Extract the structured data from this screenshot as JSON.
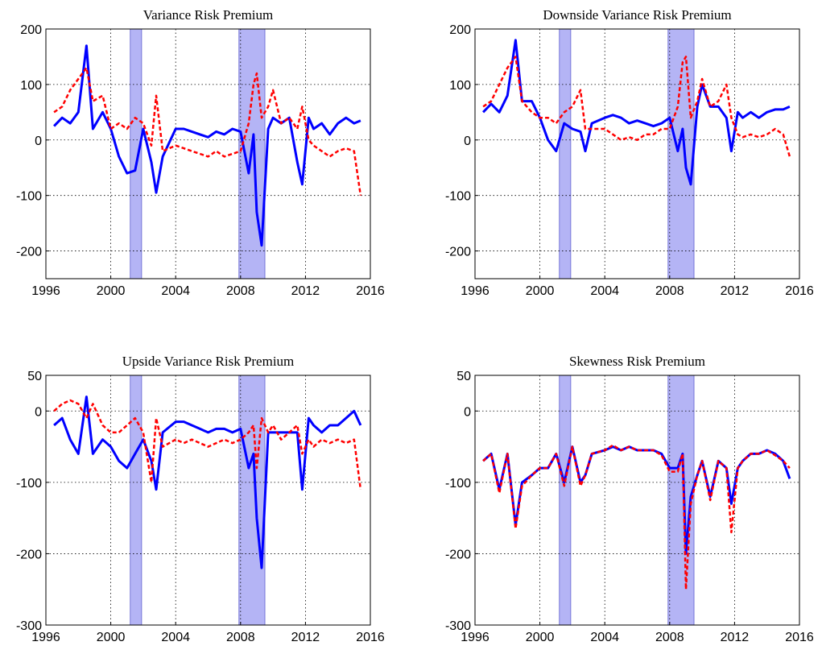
{
  "chart_data": [
    {
      "type": "line",
      "title": "Variance Risk Premium",
      "x": [
        1996.5,
        1997,
        1997.5,
        1998,
        1998.5,
        1998.9,
        1999.5,
        2000,
        2000.5,
        2001,
        2001.5,
        2002,
        2002.5,
        2002.8,
        2003.2,
        2004,
        2004.5,
        2005,
        2005.5,
        2006,
        2006.5,
        2007,
        2007.5,
        2008,
        2008.5,
        2008.8,
        2009,
        2009.3,
        2009.7,
        2010,
        2010.5,
        2011,
        2011.5,
        2011.8,
        2012.2,
        2012.5,
        2013,
        2013.5,
        2014,
        2014.5,
        2015,
        2015.4
      ],
      "series": [
        {
          "color": "#0000ff",
          "dashed": false,
          "values": [
            25,
            40,
            30,
            50,
            170,
            20,
            50,
            20,
            -30,
            -60,
            -55,
            20,
            -40,
            -95,
            -30,
            20,
            20,
            15,
            10,
            5,
            15,
            10,
            20,
            15,
            -60,
            10,
            -130,
            -190,
            20,
            40,
            30,
            40,
            -40,
            -80,
            40,
            20,
            30,
            10,
            30,
            40,
            30,
            35
          ]
        },
        {
          "color": "#ff0000",
          "dashed": true,
          "values": [
            50,
            60,
            90,
            110,
            130,
            70,
            80,
            20,
            30,
            20,
            40,
            30,
            -10,
            80,
            -20,
            -10,
            -15,
            -20,
            -25,
            -30,
            -20,
            -30,
            -25,
            -20,
            30,
            100,
            120,
            40,
            60,
            90,
            30,
            40,
            20,
            60,
            0,
            -10,
            -20,
            -30,
            -20,
            -15,
            -20,
            -100
          ]
        }
      ],
      "xlim": [
        1996,
        2016
      ],
      "xticks": [
        1996,
        2000,
        2004,
        2008,
        2012,
        2016
      ],
      "ylim": [
        -250,
        200
      ],
      "yticks": [
        -200,
        -100,
        0,
        100,
        200
      ],
      "grid": true,
      "recessions": [
        [
          2001.2,
          2001.9
        ],
        [
          2007.9,
          2009.5
        ]
      ],
      "recession_color": "#b4b4f5"
    },
    {
      "type": "line",
      "title": "Downside Variance Risk Premium",
      "x": [
        1996.5,
        1997,
        1997.5,
        1998,
        1998.5,
        1998.9,
        1999.5,
        2000,
        2000.5,
        2001,
        2001.5,
        2002,
        2002.5,
        2002.8,
        2003.2,
        2004,
        2004.5,
        2005,
        2005.5,
        2006,
        2006.5,
        2007,
        2007.5,
        2008,
        2008.5,
        2008.8,
        2009,
        2009.3,
        2009.7,
        2010,
        2010.5,
        2011,
        2011.5,
        2011.8,
        2012.2,
        2012.5,
        2013,
        2013.5,
        2014,
        2014.5,
        2015,
        2015.4
      ],
      "series": [
        {
          "color": "#0000ff",
          "dashed": false,
          "values": [
            50,
            65,
            50,
            80,
            180,
            70,
            70,
            40,
            0,
            -20,
            30,
            20,
            15,
            -20,
            30,
            40,
            45,
            40,
            30,
            35,
            30,
            25,
            30,
            40,
            -20,
            20,
            -50,
            -80,
            60,
            100,
            60,
            60,
            40,
            -20,
            50,
            40,
            50,
            40,
            50,
            55,
            55,
            60
          ]
        },
        {
          "color": "#ff0000",
          "dashed": true,
          "values": [
            60,
            70,
            100,
            130,
            150,
            70,
            50,
            40,
            40,
            30,
            50,
            60,
            90,
            20,
            20,
            20,
            10,
            0,
            5,
            0,
            10,
            10,
            20,
            20,
            60,
            140,
            150,
            40,
            70,
            110,
            60,
            70,
            100,
            40,
            10,
            5,
            10,
            5,
            10,
            20,
            10,
            -30
          ]
        }
      ],
      "xlim": [
        1996,
        2016
      ],
      "xticks": [
        1996,
        2000,
        2004,
        2008,
        2012,
        2016
      ],
      "ylim": [
        -250,
        200
      ],
      "yticks": [
        -200,
        -100,
        0,
        100,
        200
      ],
      "grid": true,
      "recessions": [
        [
          2001.2,
          2001.9
        ],
        [
          2007.9,
          2009.5
        ]
      ],
      "recession_color": "#b4b4f5"
    },
    {
      "type": "line",
      "title": "Upside Variance Risk Premium",
      "x": [
        1996.5,
        1997,
        1997.5,
        1998,
        1998.5,
        1998.9,
        1999.5,
        2000,
        2000.5,
        2001,
        2001.5,
        2002,
        2002.5,
        2002.8,
        2003.2,
        2004,
        2004.5,
        2005,
        2005.5,
        2006,
        2006.5,
        2007,
        2007.5,
        2008,
        2008.5,
        2008.8,
        2009,
        2009.3,
        2009.7,
        2010,
        2010.5,
        2011,
        2011.5,
        2011.8,
        2012.2,
        2012.5,
        2013,
        2013.5,
        2014,
        2014.5,
        2015,
        2015.4
      ],
      "series": [
        {
          "color": "#0000ff",
          "dashed": false,
          "values": [
            -20,
            -10,
            -40,
            -60,
            20,
            -60,
            -40,
            -50,
            -70,
            -80,
            -60,
            -40,
            -70,
            -110,
            -30,
            -15,
            -15,
            -20,
            -25,
            -30,
            -25,
            -25,
            -30,
            -25,
            -80,
            -60,
            -150,
            -220,
            -30,
            -30,
            -30,
            -30,
            -30,
            -110,
            -10,
            -20,
            -30,
            -20,
            -20,
            -10,
            0,
            -20
          ]
        },
        {
          "color": "#ff0000",
          "dashed": true,
          "values": [
            0,
            10,
            15,
            10,
            -10,
            10,
            -20,
            -30,
            -30,
            -20,
            -10,
            -30,
            -100,
            -10,
            -50,
            -40,
            -45,
            -40,
            -45,
            -50,
            -45,
            -40,
            -45,
            -40,
            -30,
            -20,
            -80,
            -10,
            -30,
            -20,
            -40,
            -30,
            -20,
            -60,
            -40,
            -50,
            -40,
            -45,
            -40,
            -45,
            -40,
            -110
          ]
        }
      ],
      "xlim": [
        1996,
        2016
      ],
      "xticks": [
        1996,
        2000,
        2004,
        2008,
        2012,
        2016
      ],
      "ylim": [
        -300,
        50
      ],
      "yticks": [
        -300,
        -200,
        -100,
        0,
        50
      ],
      "grid": true,
      "recessions": [
        [
          2001.2,
          2001.9
        ],
        [
          2007.9,
          2009.5
        ]
      ],
      "recession_color": "#b4b4f5"
    },
    {
      "type": "line",
      "title": "Skewness Risk Premium",
      "x": [
        1996.5,
        1997,
        1997.5,
        1998,
        1998.5,
        1998.9,
        1999.5,
        2000,
        2000.5,
        2001,
        2001.5,
        2002,
        2002.5,
        2002.8,
        2003.2,
        2004,
        2004.5,
        2005,
        2005.5,
        2006,
        2006.5,
        2007,
        2007.5,
        2008,
        2008.5,
        2008.8,
        2009,
        2009.3,
        2009.7,
        2010,
        2010.5,
        2011,
        2011.5,
        2011.8,
        2012.2,
        2012.5,
        2013,
        2013.5,
        2014,
        2014.5,
        2015,
        2015.4
      ],
      "series": [
        {
          "color": "#0000ff",
          "dashed": false,
          "values": [
            -70,
            -60,
            -110,
            -60,
            -160,
            -100,
            -90,
            -80,
            -80,
            -60,
            -100,
            -50,
            -100,
            -90,
            -60,
            -55,
            -50,
            -55,
            -50,
            -55,
            -55,
            -55,
            -60,
            -80,
            -80,
            -60,
            -200,
            -120,
            -90,
            -70,
            -120,
            -70,
            -80,
            -130,
            -80,
            -70,
            -60,
            -60,
            -55,
            -60,
            -70,
            -95
          ]
        },
        {
          "color": "#ff0000",
          "dashed": true,
          "values": [
            -70,
            -60,
            -115,
            -60,
            -165,
            -105,
            -90,
            -80,
            -80,
            -60,
            -105,
            -50,
            -105,
            -90,
            -60,
            -55,
            -48,
            -55,
            -50,
            -55,
            -55,
            -55,
            -62,
            -85,
            -85,
            -60,
            -250,
            -130,
            -90,
            -70,
            -125,
            -70,
            -80,
            -170,
            -80,
            -70,
            -60,
            -60,
            -55,
            -62,
            -70,
            -80
          ]
        }
      ],
      "xlim": [
        1996,
        2016
      ],
      "xticks": [
        1996,
        2000,
        2004,
        2008,
        2012,
        2016
      ],
      "ylim": [
        -300,
        50
      ],
      "yticks": [
        -300,
        -200,
        -100,
        0,
        50
      ],
      "grid": true,
      "recessions": [
        [
          2001.2,
          2001.9
        ],
        [
          2007.9,
          2009.5
        ]
      ],
      "recession_color": "#b4b4f5"
    }
  ]
}
